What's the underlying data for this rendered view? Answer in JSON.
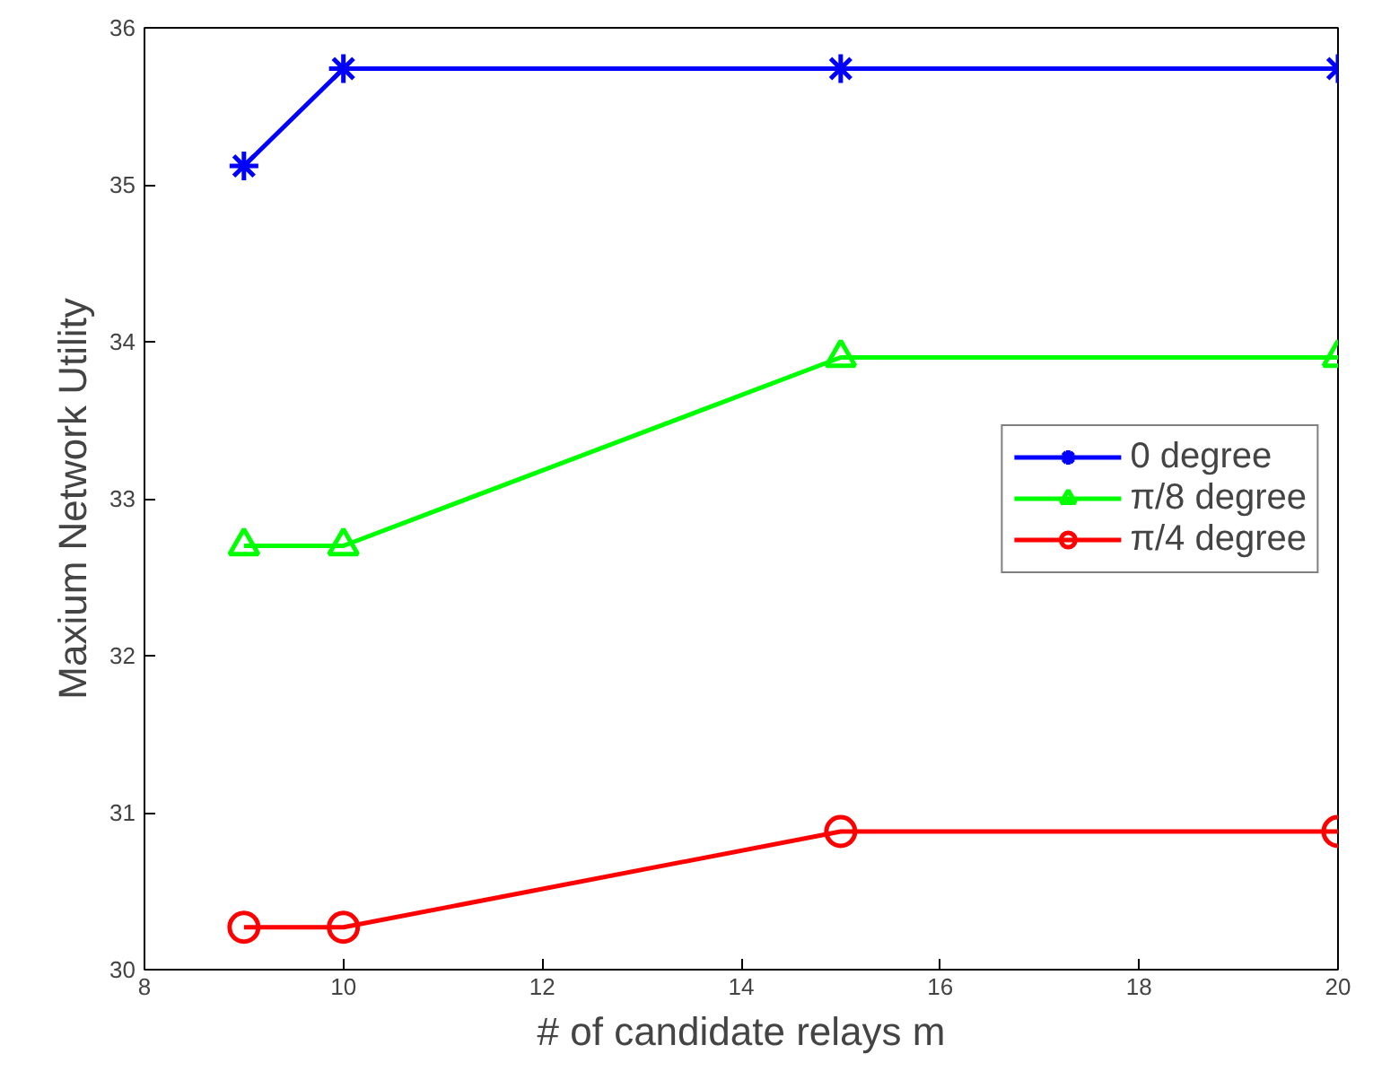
{
  "chart_data": {
    "type": "line",
    "xlabel": "# of candidate relays m",
    "ylabel": "Maxium Network Utility",
    "x": [
      9,
      10,
      15,
      20
    ],
    "series": [
      {
        "name": "0 degree",
        "color": "#0000ff",
        "marker": "cross",
        "values": [
          35.12,
          35.74,
          35.74,
          35.74
        ]
      },
      {
        "name": "π/8 degree",
        "color": "#00ff00",
        "marker": "triangle",
        "values": [
          32.7,
          32.7,
          33.9,
          33.9
        ]
      },
      {
        "name": "π/4 degree",
        "color": "#ff0000",
        "marker": "circle",
        "values": [
          30.27,
          30.27,
          30.88,
          30.88
        ]
      }
    ],
    "xlim": [
      8,
      20
    ],
    "ylim": [
      30,
      36
    ],
    "xticks": [
      8,
      10,
      12,
      14,
      16,
      18,
      20
    ],
    "yticks": [
      30,
      31,
      32,
      33,
      34,
      35,
      36
    ],
    "grid": false,
    "legend": "right",
    "line_style": "solid"
  }
}
